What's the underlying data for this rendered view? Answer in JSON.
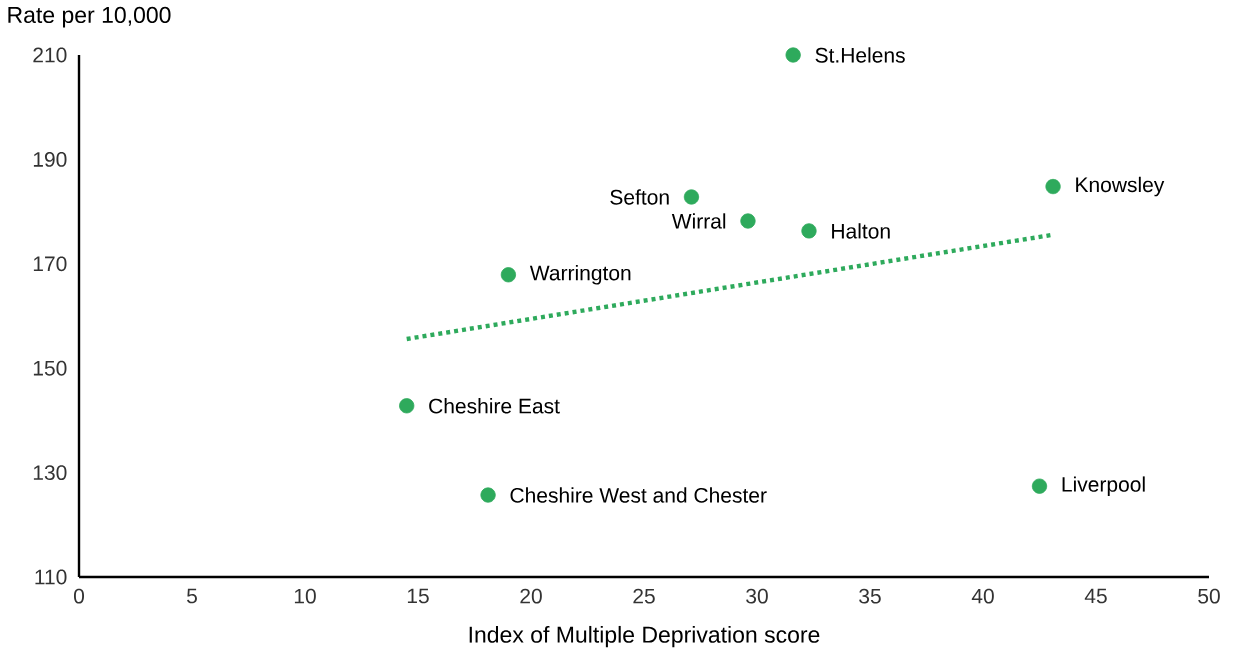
{
  "chart_data": {
    "type": "scatter",
    "xlabel": "Index of Multiple Deprivation score",
    "ylabel": "Rate per 10,000",
    "xlim": [
      0,
      50
    ],
    "ylim": [
      110,
      210
    ],
    "xticks": [
      0,
      5,
      10,
      15,
      20,
      25,
      30,
      35,
      40,
      45,
      50
    ],
    "yticks": [
      110,
      130,
      150,
      170,
      190,
      210
    ],
    "series": [
      {
        "color": "#2eaa5c",
        "marker": "circle",
        "x": [
          31.6,
          27.1,
          29.6,
          32.3,
          43.1,
          19.0,
          14.5,
          18.1,
          42.5
        ],
        "values": [
          210,
          182.8,
          178.2,
          176.3,
          184.8,
          167.9,
          142.8,
          125.7,
          127.4
        ]
      },
      {
        "type": "line",
        "color": "#2eaa5c",
        "marker": "none",
        "line_style": "dotted",
        "x": [
          14.5,
          43.0
        ],
        "values": [
          155.6,
          175.5
        ]
      }
    ],
    "annotations": [
      {
        "text": "St.Helens",
        "x": 31.6,
        "y": 210
      },
      {
        "text": "Sefton",
        "x": 27.1,
        "y": 182.8
      },
      {
        "text": "Wirral",
        "x": 29.6,
        "y": 178.2
      },
      {
        "text": "Halton",
        "x": 32.3,
        "y": 176.3
      },
      {
        "text": "Knowsley",
        "x": 43.1,
        "y": 184.8
      },
      {
        "text": "Warrington",
        "x": 19.0,
        "y": 167.9
      },
      {
        "text": "Cheshire East",
        "x": 14.5,
        "y": 142.8
      },
      {
        "text": "Cheshire West and Chester",
        "x": 18.1,
        "y": 125.7
      },
      {
        "text": "Liverpool",
        "x": 42.5,
        "y": 127.4
      }
    ]
  }
}
